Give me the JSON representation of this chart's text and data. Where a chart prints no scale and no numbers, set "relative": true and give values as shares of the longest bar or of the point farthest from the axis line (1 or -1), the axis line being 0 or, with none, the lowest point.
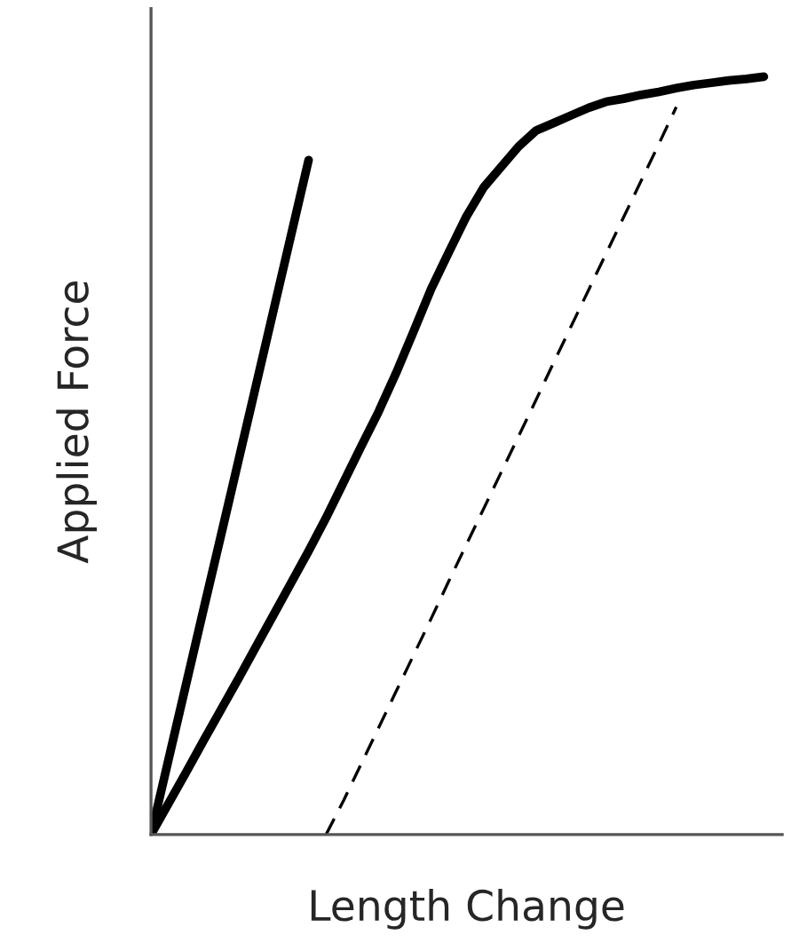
{
  "chart_data": {
    "type": "line",
    "relative": true,
    "xlabel": "Length Change",
    "ylabel": "Applied Force",
    "tick_labels": false,
    "marker": "none",
    "categories": [
      null,
      null,
      null,
      null,
      null,
      null,
      null,
      null,
      null,
      null,
      null,
      null,
      null,
      null,
      null,
      null,
      null,
      null,
      null,
      null,
      null,
      null,
      null,
      null,
      null,
      null,
      null,
      null,
      null,
      null,
      null,
      null,
      null,
      null,
      null,
      null
    ],
    "series": [
      {
        "color": "#000000",
        "line_style": "solid",
        "values": [
          0,
          0.099,
          0.198,
          0.297,
          0.395,
          0.494,
          0.593,
          0.692,
          0.791,
          0.89,
          null,
          null,
          null,
          null,
          null,
          null,
          null,
          null,
          null,
          null,
          null,
          null,
          null,
          null,
          null,
          null,
          null,
          null,
          null,
          null,
          null,
          null,
          null,
          null,
          null,
          null
        ]
      },
      {
        "color": "#000000",
        "line_style": "solid",
        "values": [
          0,
          0.041,
          0.082,
          0.124,
          0.165,
          0.206,
          0.248,
          0.29,
          0.332,
          0.374,
          0.418,
          0.465,
          0.512,
          0.558,
          0.609,
          0.664,
          0.72,
          0.768,
          0.815,
          0.854,
          0.881,
          0.908,
          0.929,
          0.939,
          0.949,
          0.959,
          0.967,
          0.971,
          0.976,
          0.98,
          0.985,
          0.989,
          0.992,
          0.995,
          0.997,
          1.0
        ]
      },
      {
        "color": "#000000",
        "line_style": "dashed",
        "values": [
          null,
          null,
          null,
          null,
          null,
          null,
          null,
          null,
          null,
          null,
          0,
          0.045,
          0.093,
          0.141,
          0.189,
          0.237,
          0.285,
          0.334,
          0.382,
          0.43,
          0.478,
          0.526,
          0.574,
          0.623,
          0.671,
          0.719,
          0.767,
          0.815,
          0.863,
          0.911,
          0.96,
          null,
          null,
          null,
          null,
          null
        ]
      }
    ]
  }
}
